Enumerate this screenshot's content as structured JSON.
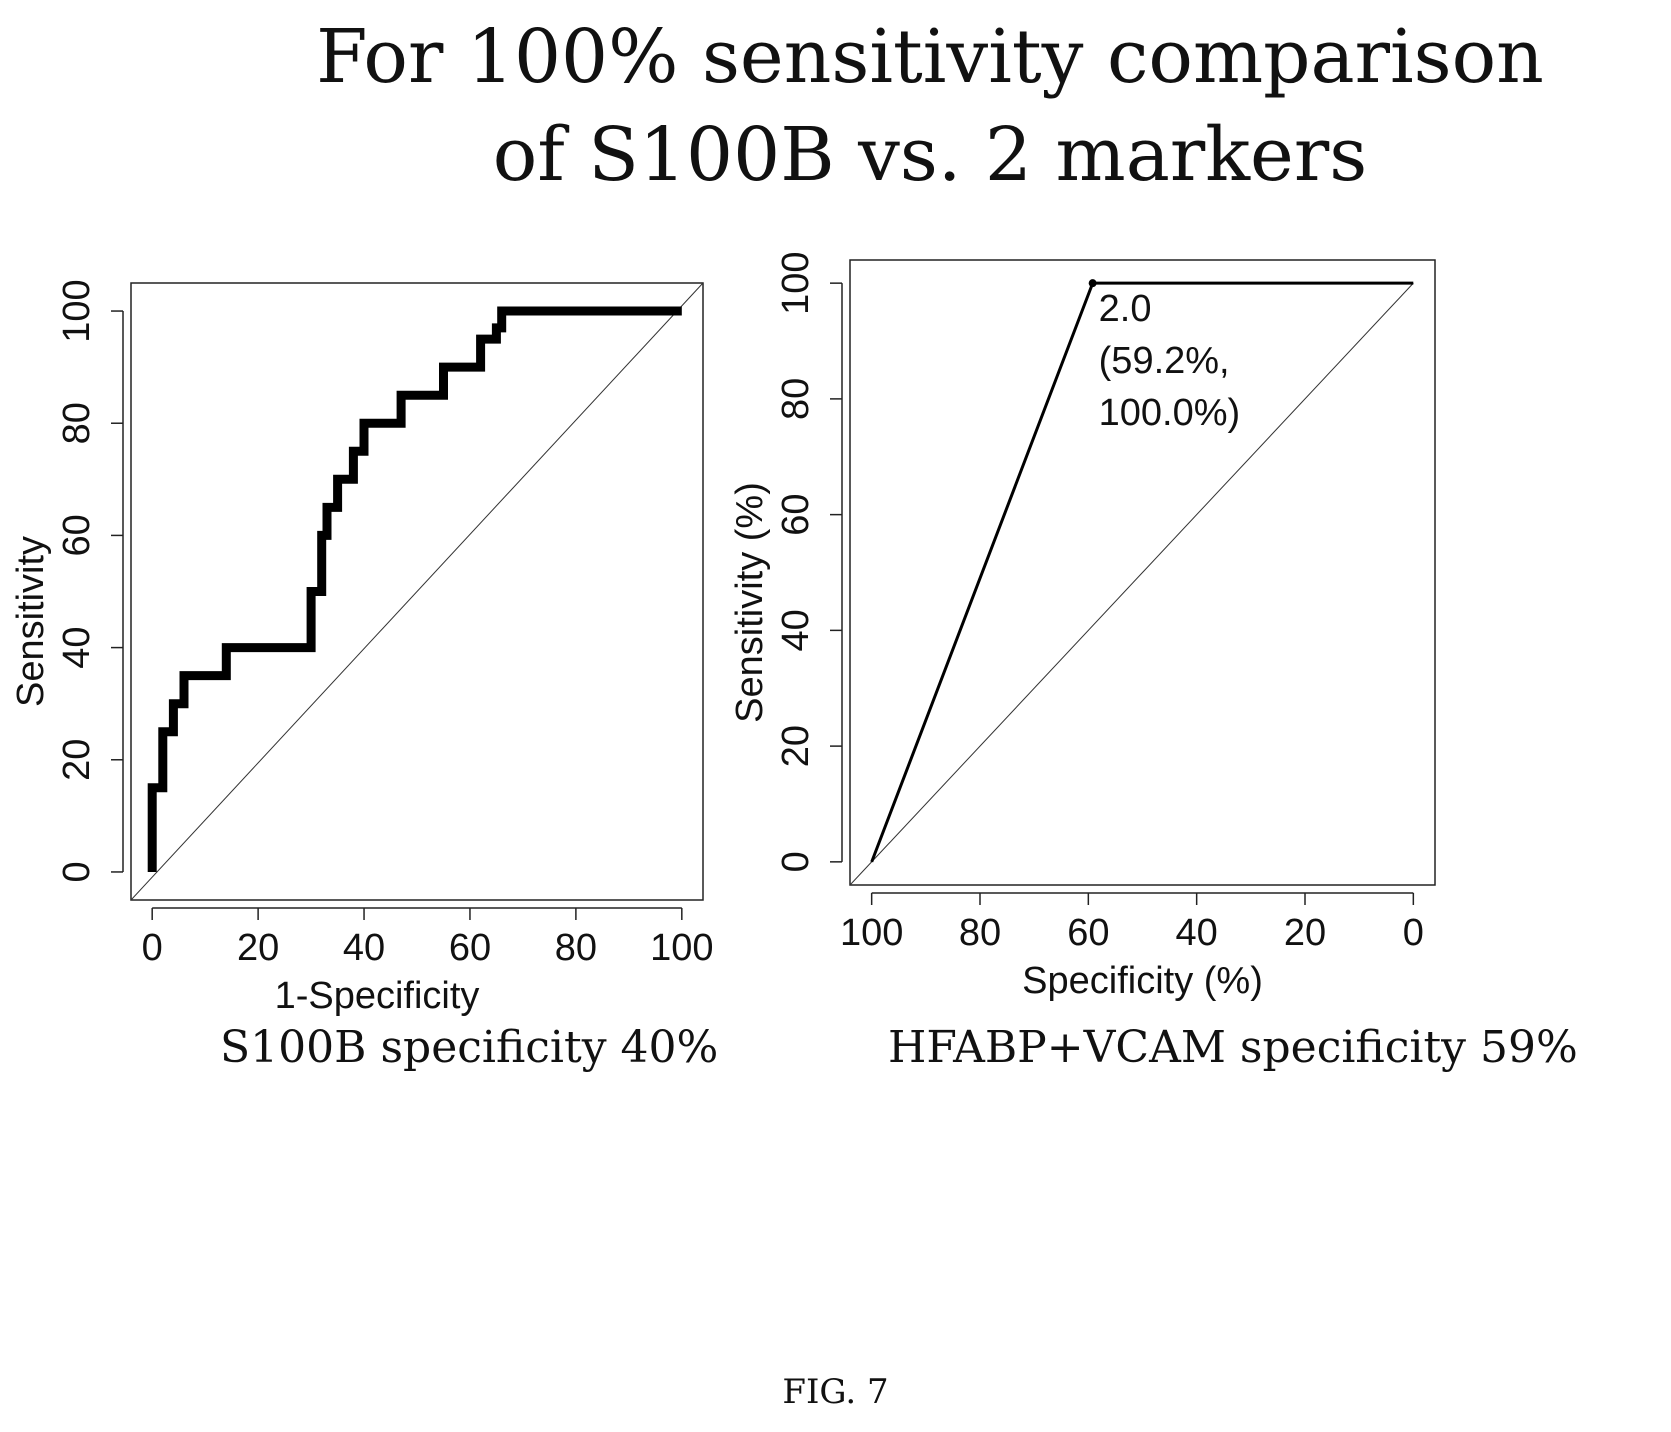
{
  "title": {
    "line1": "For 100% sensitivity comparison",
    "line2": "of S100B vs. 2 markers"
  },
  "chart_data": [
    {
      "type": "line",
      "xlabel": "1-Specificity",
      "ylabel": "Sensitivity",
      "xlim": [
        -4,
        104
      ],
      "ylim": [
        -5,
        105
      ],
      "xticks": [
        "0",
        "20",
        "40",
        "60",
        "80",
        "100"
      ],
      "yticks": [
        "0",
        "20",
        "40",
        "60",
        "80",
        "100"
      ],
      "series": [
        {
          "x": [
            0,
            0,
            2,
            2,
            4,
            4,
            6,
            6,
            6,
            14,
            14,
            30,
            30,
            32,
            32,
            33,
            33,
            35,
            35,
            38,
            38,
            40,
            40,
            47,
            47,
            55,
            55,
            60,
            60,
            62,
            62,
            65,
            65,
            66,
            66,
            68,
            100
          ],
          "y": [
            0,
            15,
            15,
            25,
            25,
            30,
            30,
            35,
            35,
            35,
            40,
            40,
            50,
            50,
            60,
            60,
            65,
            65,
            70,
            70,
            75,
            75,
            80,
            80,
            85,
            85,
            90,
            90,
            90,
            90,
            95,
            95,
            97,
            97,
            100,
            100,
            100
          ]
        }
      ],
      "reference_line": "diagonal",
      "caption": "S100B specificity 40%"
    },
    {
      "type": "line",
      "xlabel": "Specificity (%)",
      "ylabel": "Sensitivity (%)",
      "xlim": [
        104,
        -4
      ],
      "ylim": [
        -4,
        104
      ],
      "x_reversed": true,
      "xticks": [
        "100",
        "80",
        "60",
        "40",
        "20",
        "0"
      ],
      "yticks": [
        "0",
        "20",
        "40",
        "60",
        "80",
        "100"
      ],
      "series": [
        {
          "x": [
            100,
            59.2,
            0
          ],
          "y": [
            0,
            100,
            100
          ]
        }
      ],
      "reference_line": "diagonal",
      "annotation": {
        "point": [
          59.2,
          100
        ],
        "lines": [
          "2.0",
          "(59.2%,",
          "100.0%)"
        ]
      },
      "caption": "HFABP+VCAM specificity 59%"
    }
  ],
  "figure_label": "FIG. 7"
}
